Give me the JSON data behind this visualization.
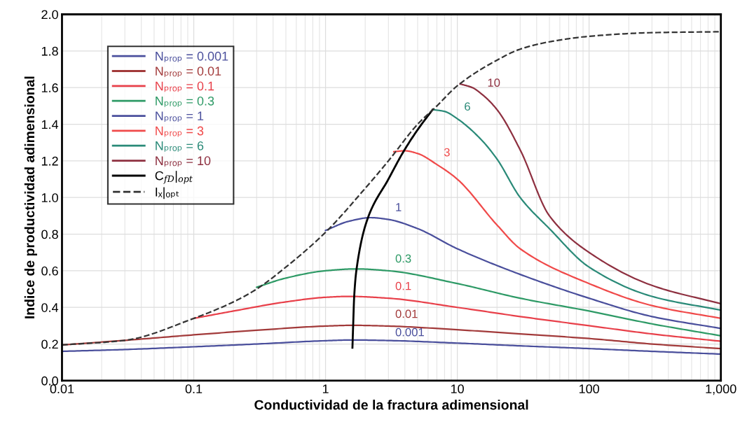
{
  "chart_data": {
    "type": "line",
    "xlabel": "Conductividad de la fractura adimensional",
    "ylabel": "Indice de productividad adimensional",
    "log": "x",
    "xlim": [
      0.01,
      1000
    ],
    "xticks": [
      0.01,
      0.1,
      1,
      10,
      100,
      {
        "value": 1000,
        "label": "1,000"
      }
    ],
    "ylim": [
      0,
      2
    ],
    "yticks": [
      {
        "value": 0,
        "label": "0.0"
      },
      0.2,
      0.4,
      0.6,
      0.8,
      {
        "value": 1,
        "label": "1.0"
      },
      1.2,
      1.4,
      1.6,
      1.8,
      {
        "value": 2,
        "label": "2.0"
      }
    ],
    "grid": true,
    "legend": "top left",
    "marker": "none",
    "series": [
      {
        "name": "Nₚᵣₒₚ = 0.001",
        "color": "#4a4f9c",
        "x": [
          0.01,
          0.03,
          0.1,
          0.3,
          1,
          1.6,
          3,
          10,
          30,
          100,
          300,
          1000
        ],
        "values": [
          0.16,
          0.17,
          0.185,
          0.2,
          0.218,
          0.222,
          0.219,
          0.205,
          0.19,
          0.175,
          0.16,
          0.145
        ]
      },
      {
        "name": "Nₚᵣₒₚ = 0.01",
        "color": "#a23a3a",
        "x": [
          0.01,
          0.03,
          0.1,
          0.3,
          1,
          1.6,
          3,
          10,
          30,
          100,
          300,
          1000
        ],
        "values": [
          0.195,
          0.22,
          0.25,
          0.275,
          0.298,
          0.302,
          0.298,
          0.278,
          0.255,
          0.23,
          0.2,
          0.175
        ]
      },
      {
        "name": "Nₚᵣₒₚ = 0.1",
        "color": "#e8404a",
        "x": [
          0.1,
          0.2,
          0.5,
          1,
          1.5,
          3,
          10,
          30,
          100,
          300,
          1000
        ],
        "values": [
          0.34,
          0.38,
          0.43,
          0.455,
          0.46,
          0.45,
          0.4,
          0.35,
          0.3,
          0.255,
          0.215
        ]
      },
      {
        "name": "Nₚᵣₒₚ = 0.3",
        "color": "#2e9a66",
        "x": [
          0.3,
          0.5,
          1,
          1.7,
          3,
          10,
          30,
          100,
          300,
          1000
        ],
        "values": [
          0.51,
          0.56,
          0.6,
          0.61,
          0.6,
          0.53,
          0.45,
          0.38,
          0.31,
          0.245
        ]
      },
      {
        "name": "Nₚᵣₒₚ = 1",
        "color": "#4a4f9c",
        "x": [
          1,
          1.5,
          2.2,
          3,
          5,
          10,
          30,
          100,
          300,
          1000
        ],
        "values": [
          0.82,
          0.87,
          0.89,
          0.88,
          0.83,
          0.72,
          0.58,
          0.45,
          0.35,
          0.285
        ]
      },
      {
        "name": "Nₚᵣₒₚ = 3",
        "color": "#f04a4a",
        "x": [
          3.3,
          4,
          5,
          7,
          10,
          20,
          30,
          100,
          300,
          1000
        ],
        "values": [
          1.25,
          1.255,
          1.24,
          1.18,
          1.1,
          0.85,
          0.72,
          0.53,
          0.41,
          0.34
        ]
      },
      {
        "name": "Nₚᵣₒₚ = 6",
        "color": "#2a8a78",
        "x": [
          6.5,
          8,
          10,
          15,
          20,
          30,
          50,
          100,
          300,
          1000
        ],
        "values": [
          1.48,
          1.47,
          1.43,
          1.32,
          1.21,
          1.0,
          0.83,
          0.62,
          0.46,
          0.385
        ]
      },
      {
        "name": "Nₚᵣₒₚ = 10",
        "color": "#8e3040",
        "x": [
          10.5,
          13,
          15,
          20,
          30,
          50,
          100,
          300,
          1000
        ],
        "values": [
          1.62,
          1.6,
          1.57,
          1.48,
          1.26,
          0.9,
          0.7,
          0.52,
          0.42
        ]
      },
      {
        "name": "C$_{fD}$|$_{opt}$",
        "color": "#000000",
        "x": [
          1.6,
          1.62,
          1.65,
          1.72,
          2.1,
          3.0,
          3.9,
          5.0,
          6.5
        ],
        "values": [
          0.18,
          0.3,
          0.46,
          0.61,
          0.89,
          1.1,
          1.25,
          1.37,
          1.48
        ]
      },
      {
        "name": "Iₓ|ₒₚₜ",
        "color": "#333333",
        "line_style": "dashed",
        "x": [
          0.01,
          0.03,
          0.1,
          0.2,
          0.3,
          0.5,
          1,
          2,
          3,
          5,
          7,
          10,
          20,
          30,
          50,
          100,
          300,
          1000
        ],
        "values": [
          0.195,
          0.22,
          0.34,
          0.43,
          0.5,
          0.62,
          0.81,
          1.05,
          1.2,
          1.4,
          1.5,
          1.61,
          1.75,
          1.81,
          1.85,
          1.88,
          1.9,
          1.905
        ]
      }
    ],
    "annotations": [
      {
        "text": "0.001",
        "x": 3,
        "y": 0.219
      },
      {
        "text": "0.01",
        "x": 3,
        "y": 0.298
      },
      {
        "text": "0.1",
        "x": 3,
        "y": 0.45
      },
      {
        "text": "0.3",
        "x": 3,
        "y": 0.6
      },
      {
        "text": "1",
        "x": 3,
        "y": 0.88
      },
      {
        "text": "3",
        "x": 7,
        "y": 1.18
      },
      {
        "text": "6",
        "x": 10,
        "y": 1.43
      },
      {
        "text": "10",
        "x": 15,
        "y": 1.56
      }
    ]
  }
}
